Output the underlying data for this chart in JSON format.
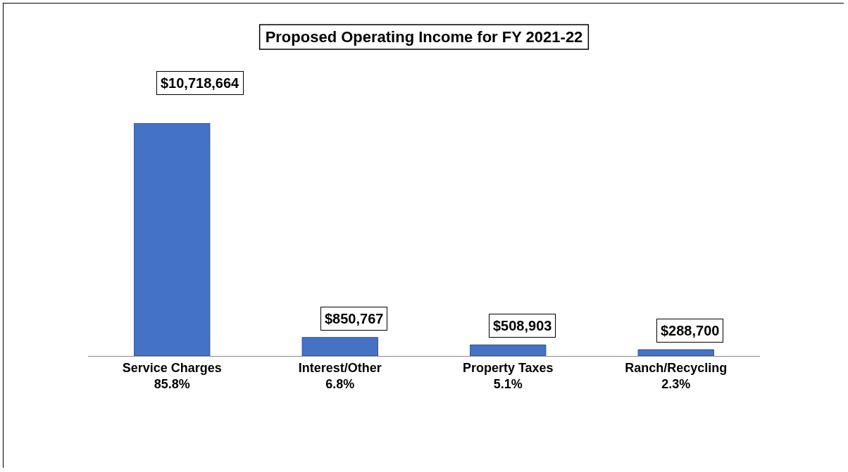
{
  "chart_data": {
    "type": "bar",
    "title": "Proposed Operating Income for FY 2021-22",
    "categories": [
      "Service Charges\n85.8%",
      "Interest/Other\n6.8%",
      "Property Taxes\n5.1%",
      "Ranch/Recycling\n2.3%"
    ],
    "values": [
      10718664,
      850767,
      508903,
      288700
    ],
    "value_labels": [
      "$10,718,664",
      "$850,767",
      "$508,903",
      "$288,700"
    ],
    "color": "#4472c4"
  }
}
